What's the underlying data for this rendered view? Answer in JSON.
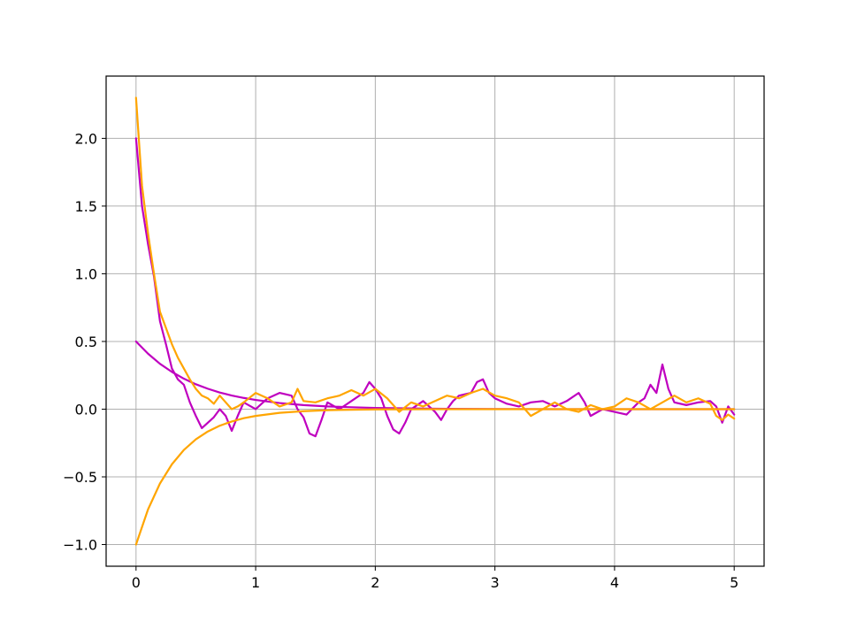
{
  "chart_data": {
    "type": "line",
    "title": "",
    "xlabel": "",
    "ylabel": "",
    "xlim": [
      -0.25,
      5.25
    ],
    "ylim": [
      -1.16,
      2.46
    ],
    "x_ticks": [
      0,
      1,
      2,
      3,
      4,
      5
    ],
    "x_tick_labels": [
      "0",
      "1",
      "2",
      "3",
      "4",
      "5"
    ],
    "y_ticks": [
      -1.0,
      -0.5,
      0.0,
      0.5,
      1.0,
      1.5,
      2.0
    ],
    "y_tick_labels": [
      "−1.0",
      "−0.5",
      "0.0",
      "0.5",
      "1.0",
      "1.5",
      "2.0"
    ],
    "grid": true,
    "legend": "none",
    "series": [
      {
        "color": "#bf00bf",
        "style": "noisy",
        "x": [
          0,
          0.05,
          0.1,
          0.15,
          0.2,
          0.25,
          0.3,
          0.35,
          0.4,
          0.45,
          0.5,
          0.55,
          0.6,
          0.65,
          0.7,
          0.75,
          0.8,
          0.85,
          0.9,
          1.0,
          1.1,
          1.2,
          1.3,
          1.35,
          1.4,
          1.45,
          1.5,
          1.55,
          1.6,
          1.7,
          1.8,
          1.9,
          1.95,
          2.0,
          2.05,
          2.1,
          2.15,
          2.2,
          2.25,
          2.3,
          2.4,
          2.5,
          2.55,
          2.6,
          2.65,
          2.7,
          2.8,
          2.85,
          2.9,
          2.95,
          3.0,
          3.1,
          3.2,
          3.3,
          3.4,
          3.5,
          3.6,
          3.7,
          3.75,
          3.8,
          3.9,
          4.0,
          4.1,
          4.2,
          4.25,
          4.3,
          4.35,
          4.4,
          4.45,
          4.5,
          4.6,
          4.7,
          4.8,
          4.85,
          4.9,
          4.95,
          5.0
        ],
        "y": [
          2.0,
          1.5,
          1.22,
          0.98,
          0.65,
          0.48,
          0.3,
          0.22,
          0.18,
          0.05,
          -0.05,
          -0.14,
          -0.1,
          -0.06,
          0.0,
          -0.05,
          -0.16,
          -0.05,
          0.05,
          0.0,
          0.08,
          0.12,
          0.1,
          0.0,
          -0.06,
          -0.18,
          -0.2,
          -0.08,
          0.05,
          0.0,
          0.06,
          0.12,
          0.2,
          0.15,
          0.08,
          -0.05,
          -0.15,
          -0.18,
          -0.1,
          0.0,
          0.06,
          -0.02,
          -0.08,
          0.0,
          0.06,
          0.1,
          0.12,
          0.2,
          0.22,
          0.12,
          0.08,
          0.04,
          0.02,
          0.05,
          0.06,
          0.02,
          0.06,
          0.12,
          0.05,
          -0.05,
          0.0,
          -0.02,
          -0.04,
          0.05,
          0.08,
          0.18,
          0.12,
          0.33,
          0.15,
          0.05,
          0.03,
          0.05,
          0.06,
          0.02,
          -0.1,
          0.02,
          -0.04
        ]
      },
      {
        "color": "#bf00bf",
        "style": "smooth",
        "x": [
          0,
          0.1,
          0.2,
          0.3,
          0.4,
          0.5,
          0.6,
          0.7,
          0.8,
          0.9,
          1.0,
          1.2,
          1.4,
          1.6,
          1.8,
          2.0,
          2.5,
          3.0,
          3.5,
          4.0,
          4.5,
          5.0
        ],
        "y": [
          0.5,
          0.41,
          0.335,
          0.275,
          0.225,
          0.184,
          0.151,
          0.123,
          0.101,
          0.083,
          0.068,
          0.045,
          0.03,
          0.02,
          0.014,
          0.009,
          0.003,
          0.001,
          0.0,
          0.0,
          0.0,
          0.0
        ]
      },
      {
        "color": "#ffa500",
        "style": "noisy",
        "x": [
          0,
          0.05,
          0.1,
          0.15,
          0.2,
          0.25,
          0.3,
          0.35,
          0.4,
          0.45,
          0.5,
          0.55,
          0.6,
          0.65,
          0.7,
          0.75,
          0.8,
          0.85,
          0.9,
          1.0,
          1.1,
          1.2,
          1.3,
          1.35,
          1.4,
          1.5,
          1.6,
          1.7,
          1.8,
          1.9,
          2.0,
          2.1,
          2.2,
          2.3,
          2.4,
          2.5,
          2.6,
          2.7,
          2.8,
          2.9,
          3.0,
          3.1,
          3.2,
          3.3,
          3.4,
          3.5,
          3.6,
          3.7,
          3.8,
          3.9,
          4.0,
          4.1,
          4.2,
          4.3,
          4.4,
          4.5,
          4.6,
          4.7,
          4.8,
          4.85,
          4.9,
          4.95,
          5.0
        ],
        "y": [
          2.3,
          1.65,
          1.3,
          1.0,
          0.72,
          0.6,
          0.48,
          0.38,
          0.3,
          0.22,
          0.15,
          0.1,
          0.08,
          0.04,
          0.1,
          0.05,
          0.0,
          0.02,
          0.05,
          0.12,
          0.08,
          0.02,
          0.05,
          0.15,
          0.06,
          0.05,
          0.08,
          0.1,
          0.14,
          0.1,
          0.15,
          0.08,
          -0.02,
          0.05,
          0.02,
          0.06,
          0.1,
          0.08,
          0.12,
          0.15,
          0.1,
          0.08,
          0.05,
          -0.05,
          0.0,
          0.05,
          0.0,
          -0.02,
          0.03,
          0.0,
          0.02,
          0.08,
          0.05,
          0.0,
          0.05,
          0.1,
          0.05,
          0.08,
          0.04,
          -0.05,
          -0.08,
          -0.04,
          -0.07
        ]
      },
      {
        "color": "#ffa500",
        "style": "smooth",
        "x": [
          0,
          0.1,
          0.2,
          0.3,
          0.4,
          0.5,
          0.6,
          0.7,
          0.8,
          0.9,
          1.0,
          1.2,
          1.4,
          1.6,
          1.8,
          2.0,
          2.5,
          3.0,
          3.5,
          4.0,
          4.5,
          5.0
        ],
        "y": [
          -1.0,
          -0.741,
          -0.549,
          -0.407,
          -0.301,
          -0.223,
          -0.165,
          -0.122,
          -0.091,
          -0.067,
          -0.05,
          -0.027,
          -0.015,
          -0.008,
          -0.004,
          -0.002,
          0.0,
          0.0,
          0.0,
          0.0,
          0.0,
          0.0
        ]
      }
    ]
  }
}
